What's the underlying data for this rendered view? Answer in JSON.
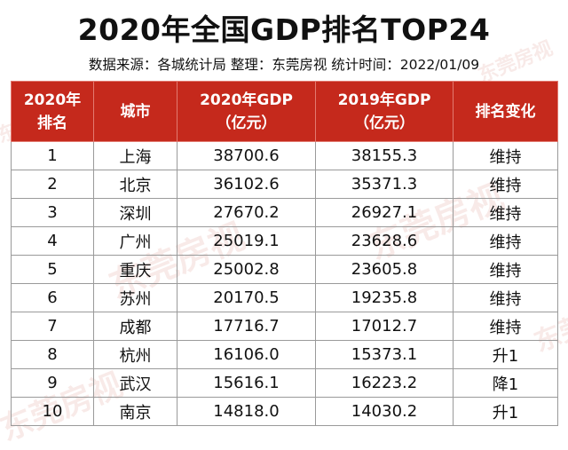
{
  "title": "2020年全国GDP排名TOP24",
  "subtitle": "数据来源：各城统计局 整理：东莞房视 统计时间：2022/01/09",
  "watermark": "东莞房视",
  "colors": {
    "header_bg": "#c5291c",
    "up": "#d42a1e",
    "down": "#3d8b37"
  },
  "table": {
    "headers": [
      {
        "line1": "2020年",
        "line2": "排名"
      },
      {
        "line1": "城市",
        "line2": ""
      },
      {
        "line1": "2020年GDP",
        "line2": "（亿元）"
      },
      {
        "line1": "2019年GDP",
        "line2": "（亿元）"
      },
      {
        "line1": "排名变化",
        "line2": ""
      }
    ],
    "rows": [
      {
        "rank": "1",
        "city": "上海",
        "gdp2020": "38700.6",
        "gdp2019": "38155.3",
        "change": "维持",
        "trend": "same"
      },
      {
        "rank": "2",
        "city": "北京",
        "gdp2020": "36102.6",
        "gdp2019": "35371.3",
        "change": "维持",
        "trend": "same"
      },
      {
        "rank": "3",
        "city": "深圳",
        "gdp2020": "27670.2",
        "gdp2019": "26927.1",
        "change": "维持",
        "trend": "same"
      },
      {
        "rank": "4",
        "city": "广州",
        "gdp2020": "25019.1",
        "gdp2019": "23628.6",
        "change": "维持",
        "trend": "same"
      },
      {
        "rank": "5",
        "city": "重庆",
        "gdp2020": "25002.8",
        "gdp2019": "23605.8",
        "change": "维持",
        "trend": "same"
      },
      {
        "rank": "6",
        "city": "苏州",
        "gdp2020": "20170.5",
        "gdp2019": "19235.8",
        "change": "维持",
        "trend": "same"
      },
      {
        "rank": "7",
        "city": "成都",
        "gdp2020": "17716.7",
        "gdp2019": "17012.7",
        "change": "维持",
        "trend": "same"
      },
      {
        "rank": "8",
        "city": "杭州",
        "gdp2020": "16106.0",
        "gdp2019": "15373.1",
        "change": "升1",
        "trend": "up"
      },
      {
        "rank": "9",
        "city": "武汉",
        "gdp2020": "15616.1",
        "gdp2019": "16223.2",
        "change": "降1",
        "trend": "down"
      },
      {
        "rank": "10",
        "city": "南京",
        "gdp2020": "14818.0",
        "gdp2019": "14030.2",
        "change": "升1",
        "trend": "up"
      }
    ]
  }
}
